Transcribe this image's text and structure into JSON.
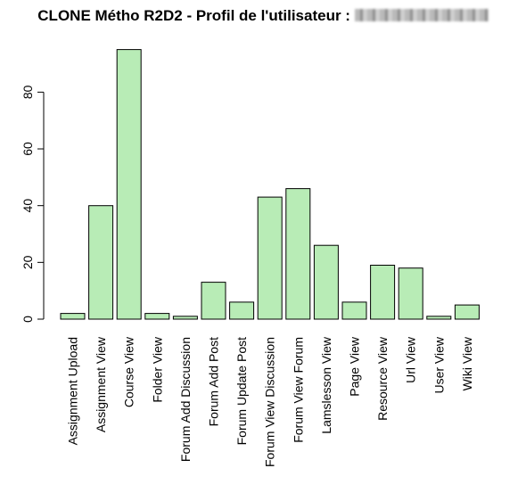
{
  "chart_data": {
    "type": "bar",
    "title": "CLONE Métho R2D2 - Profil de l'utilisateur :",
    "xlabel": "",
    "ylabel": "",
    "categories": [
      "Assignment Upload",
      "Assignment View",
      "Course View",
      "Folder View",
      "Forum Add Discussion",
      "Forum Add Post",
      "Forum Update Post",
      "Forum View Discussion",
      "Forum View Forum",
      "Lamslesson View",
      "Page View",
      "Resource View",
      "Url View",
      "User View",
      "Wiki View"
    ],
    "values": [
      2,
      40,
      95,
      2,
      1,
      13,
      6,
      43,
      46,
      26,
      6,
      19,
      18,
      1,
      5
    ],
    "ylim": [
      0,
      95
    ],
    "yticks": [
      0,
      20,
      40,
      60,
      80
    ],
    "grid": false,
    "legend": "none",
    "bar_color": "#b8ecb6",
    "border_color": "#000000"
  }
}
